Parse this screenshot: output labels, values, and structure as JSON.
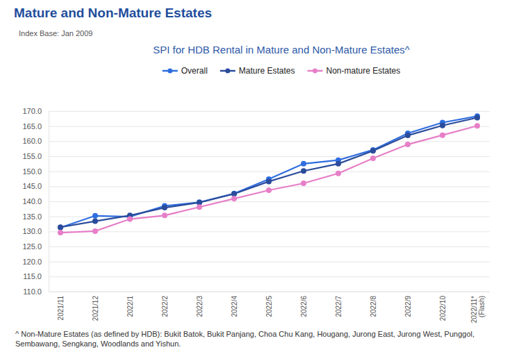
{
  "heading": "Mature and Non-Mature Estates",
  "chart_data": {
    "type": "line",
    "subtitle": "Index Base: Jan 2009",
    "title": "SPI for HDB Rental in Mature and Non-Mature Estates^",
    "categories": [
      "2021/11",
      "2021/12",
      "2022/1",
      "2022/2",
      "2022/3",
      "2022/4",
      "2022/5",
      "2022/6",
      "2022/7",
      "2022/8",
      "2022/9",
      "2022/10",
      "2022/11*\n(Flash)"
    ],
    "series": [
      {
        "name": "Overall",
        "color": "#2f6ee0",
        "values": [
          131.3,
          135.2,
          134.9,
          138.5,
          139.7,
          142.6,
          147.4,
          152.5,
          153.7,
          157.1,
          162.6,
          166.2,
          168.3
        ]
      },
      {
        "name": "Mature Estates",
        "color": "#2b4c9b",
        "values": [
          131.4,
          133.4,
          135.3,
          137.9,
          139.6,
          142.5,
          146.6,
          150.1,
          152.5,
          156.8,
          161.9,
          165.2,
          167.8
        ]
      },
      {
        "name": "Non-mature Estates",
        "color": "#e77fc8",
        "values": [
          129.6,
          130.1,
          134.1,
          135.3,
          138.1,
          140.9,
          143.7,
          146.0,
          149.3,
          154.3,
          158.9,
          162.0,
          165.1
        ]
      }
    ],
    "ylim": [
      110,
      170
    ],
    "yticks": [
      {
        "value": 110,
        "label": "110.0"
      },
      {
        "value": 115,
        "label": "115.0"
      },
      {
        "value": 120,
        "label": "120.0"
      },
      {
        "value": 125,
        "label": "125.0"
      },
      {
        "value": 130,
        "label": "130.0"
      },
      {
        "value": 135,
        "label": "135.0"
      },
      {
        "value": 140,
        "label": "140.0"
      },
      {
        "value": 145,
        "label": "145.0"
      },
      {
        "value": 150,
        "label": "150.0"
      },
      {
        "value": 155,
        "label": "155.0"
      },
      {
        "value": 160,
        "label": "160.0"
      },
      {
        "value": 165,
        "label": "165.0"
      },
      {
        "value": 170,
        "label": "170.0"
      }
    ],
    "grid": true,
    "legend": "top",
    "marker": "circle",
    "footnote": [
      "^ Non-Mature Estates (as defined by HDB): Bukit Batok, Bukit Panjang, Choa Chu Kang, Hougang, Jurong East, Jurong West, Punggol,",
      "Sembawang, Sengkang, Woodlands and Yishun."
    ]
  }
}
